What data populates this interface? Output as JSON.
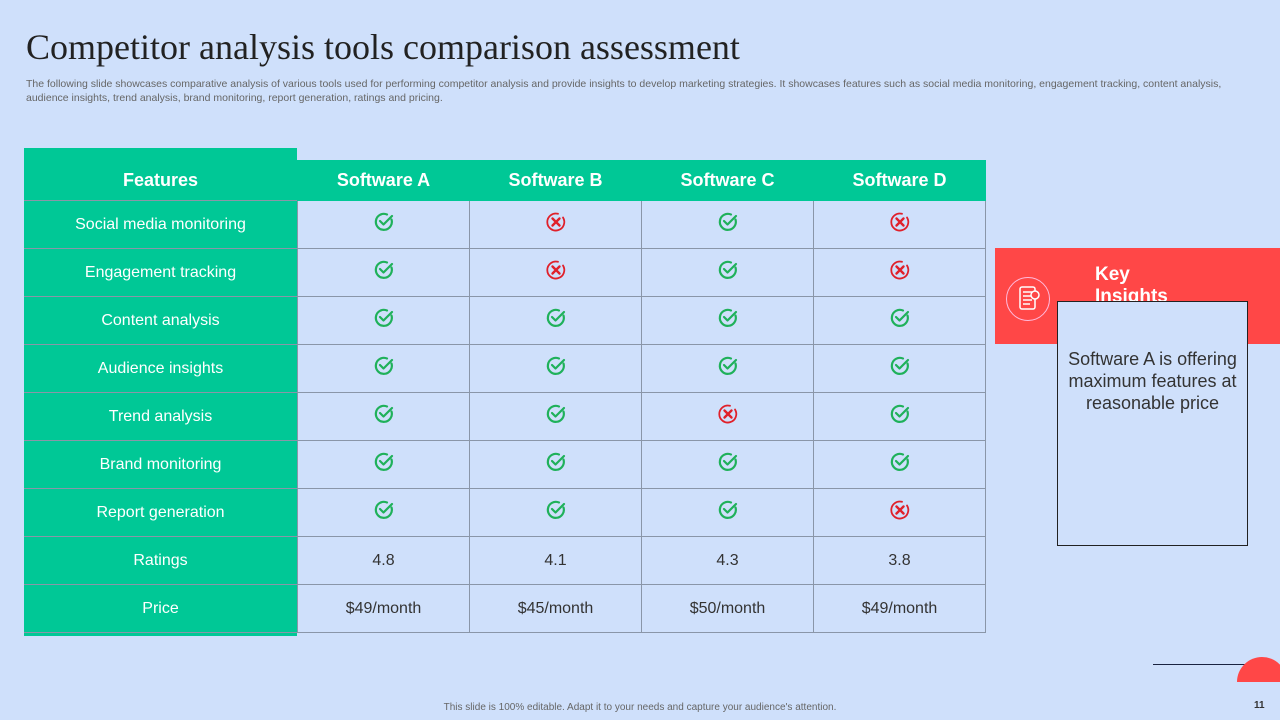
{
  "title": "Competitor analysis tools comparison assessment",
  "subtitle": "The following slide showcases comparative analysis of various tools used for performing competitor analysis and provide insights to develop marketing strategies. It showcases features such as social media monitoring, engagement tracking, content analysis, audience insights, trend analysis, brand monitoring, report generation, ratings and pricing.",
  "table": {
    "headers": [
      "Features",
      "Software A",
      "Software B",
      "Software C",
      "Software D"
    ],
    "rows": [
      {
        "feature": "Social media monitoring",
        "values": [
          "check",
          "cross",
          "check",
          "cross"
        ]
      },
      {
        "feature": "Engagement tracking",
        "values": [
          "check",
          "cross",
          "check",
          "cross"
        ]
      },
      {
        "feature": "Content analysis",
        "values": [
          "check",
          "check",
          "check",
          "check"
        ]
      },
      {
        "feature": "Audience insights",
        "values": [
          "check",
          "check",
          "check",
          "check"
        ]
      },
      {
        "feature": "Trend analysis",
        "values": [
          "check",
          "check",
          "cross",
          "check"
        ]
      },
      {
        "feature": "Brand monitoring",
        "values": [
          "check",
          "check",
          "check",
          "check"
        ]
      },
      {
        "feature": "Report generation",
        "values": [
          "check",
          "check",
          "check",
          "cross"
        ]
      },
      {
        "feature": "Ratings",
        "values": [
          "4.8",
          "4.1",
          "4.3",
          "3.8"
        ]
      },
      {
        "feature": "Price",
        "values": [
          "$49/month",
          "$45/month",
          "$50/month",
          "$49/month"
        ]
      }
    ]
  },
  "insights": {
    "title": "Key Insights",
    "text": "Software A is offering maximum features at reasonable price",
    "icon": "document-icon"
  },
  "footer": "This slide is 100% editable. Adapt it to your needs and capture your audience's attention.",
  "page_number": "11",
  "colors": {
    "green": "#00c896",
    "red": "#ff4747",
    "check": "#1fb15a",
    "cross": "#e0202a",
    "background": "#cfe0fb"
  }
}
